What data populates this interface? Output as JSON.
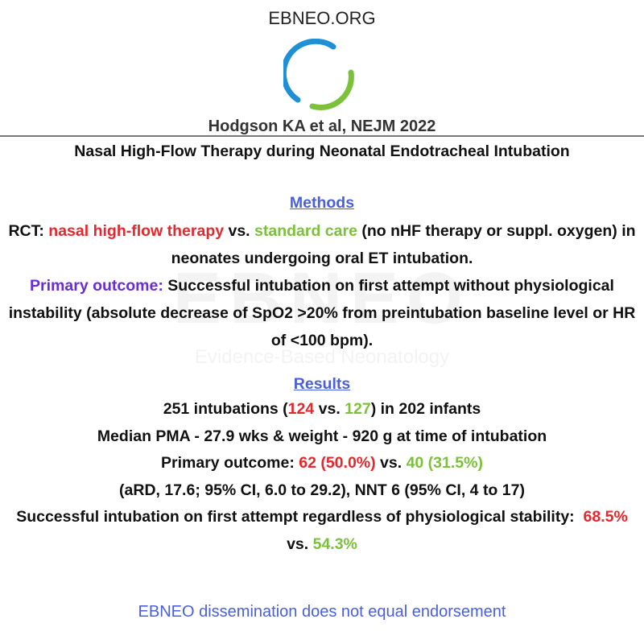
{
  "header": {
    "site": "EBNEO.ORG",
    "citation": "Hodgson KA et al, NEJM 2022",
    "title": "Nasal High-Flow Therapy during Neonatal Endotracheal Intubation"
  },
  "watermark": {
    "logo": "EBNEO",
    "tagline": "Evidence-Based Neonatology"
  },
  "methods": {
    "heading": "Methods",
    "design": [
      "RCT: ",
      "nasal high-flow therapy",
      " vs. ",
      "standard care",
      " (no nHF therapy or suppl. oxygen) in neonates undergoing oral ET intubation."
    ],
    "outcome": [
      "Primary outcome: ",
      "Successful intubation on first attempt without physiological instability (absolute decrease of SpO2 >20% from preintubation baseline level or HR of <100 bpm)."
    ]
  },
  "results": {
    "heading": "Results",
    "lines": [
      [
        "251 intubations (",
        "124",
        " vs. ",
        "127",
        ") in 202 infants"
      ],
      [
        "Median PMA - 27.9 wks & weight - 920 g at time of intubation"
      ],
      [
        "Primary outcome: ",
        "62 (50.0%)",
        " vs. ",
        "40 (31.5%)"
      ],
      [
        "(aRD, 17.6; 95% CI, 6.0 to 29.2), NNT 6 (95% CI, 4 to 17)"
      ],
      [
        "Successful intubation on first attempt regardless of physiological stability:  ",
        "68.5%",
        " vs. ",
        "54.3%"
      ]
    ]
  },
  "footer": "EBNEO dissemination does not equal endorsement"
}
